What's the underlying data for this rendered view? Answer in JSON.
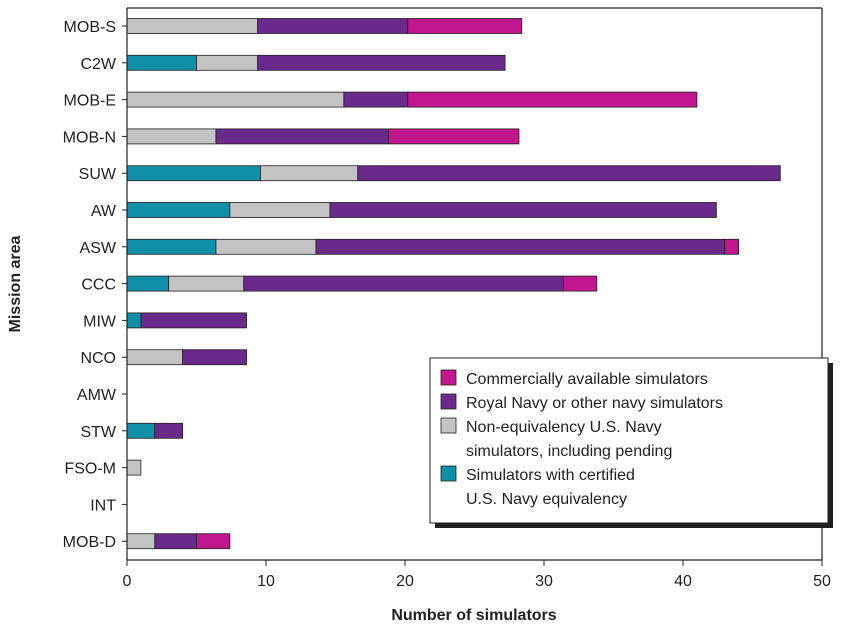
{
  "chart_data": {
    "type": "bar",
    "orientation": "horizontal",
    "stacked": true,
    "xlabel": "Number of simulators",
    "ylabel": "Mission area",
    "xlim": [
      0,
      50
    ],
    "xticks": [
      0,
      10,
      20,
      30,
      40,
      50
    ],
    "grid": false,
    "legend_position": "lower-right",
    "categories": [
      "MOB-S",
      "C2W",
      "MOB-E",
      "MOB-N",
      "SUW",
      "AW",
      "ASW",
      "CCC",
      "MIW",
      "NCO",
      "AMW",
      "STW",
      "FSO-M",
      "INT",
      "MOB-D"
    ],
    "series": [
      {
        "name": "Simulators with certified U.S. Navy equivalency",
        "legend_lines": [
          "Simulators with certified",
          "U.S. Navy equivalency"
        ],
        "color": "#0f8fa8",
        "values": [
          0,
          5,
          0,
          0,
          9.6,
          7.4,
          6.4,
          3,
          1,
          0,
          0,
          2,
          0,
          0,
          0
        ]
      },
      {
        "name": "Non-equivalency U.S. Navy simulators, including pending",
        "legend_lines": [
          "Non-equivalency U.S. Navy",
          "simulators, including pending"
        ],
        "color": "#c3c3c3",
        "values": [
          9.4,
          4.4,
          15.6,
          6.4,
          7,
          7.2,
          7.2,
          5.4,
          0,
          4,
          0,
          0,
          1,
          0,
          2
        ]
      },
      {
        "name": "Royal Navy or other navy simulators",
        "legend_lines": [
          "Royal Navy or other navy simulators"
        ],
        "color": "#6a2a8c",
        "values": [
          10.8,
          17.8,
          4.6,
          12.4,
          30.4,
          27.8,
          29.4,
          23,
          7.6,
          4.6,
          0,
          2,
          0,
          0,
          3
        ]
      },
      {
        "name": "Commercially available simulators",
        "legend_lines": [
          "Commercially available simulators"
        ],
        "color": "#c0168e",
        "values": [
          8.2,
          0,
          20.8,
          9.4,
          0,
          0,
          1,
          2.4,
          0,
          0,
          0,
          0,
          0,
          0,
          2.4
        ]
      }
    ],
    "legend_order": [
      3,
      2,
      1,
      0
    ]
  }
}
